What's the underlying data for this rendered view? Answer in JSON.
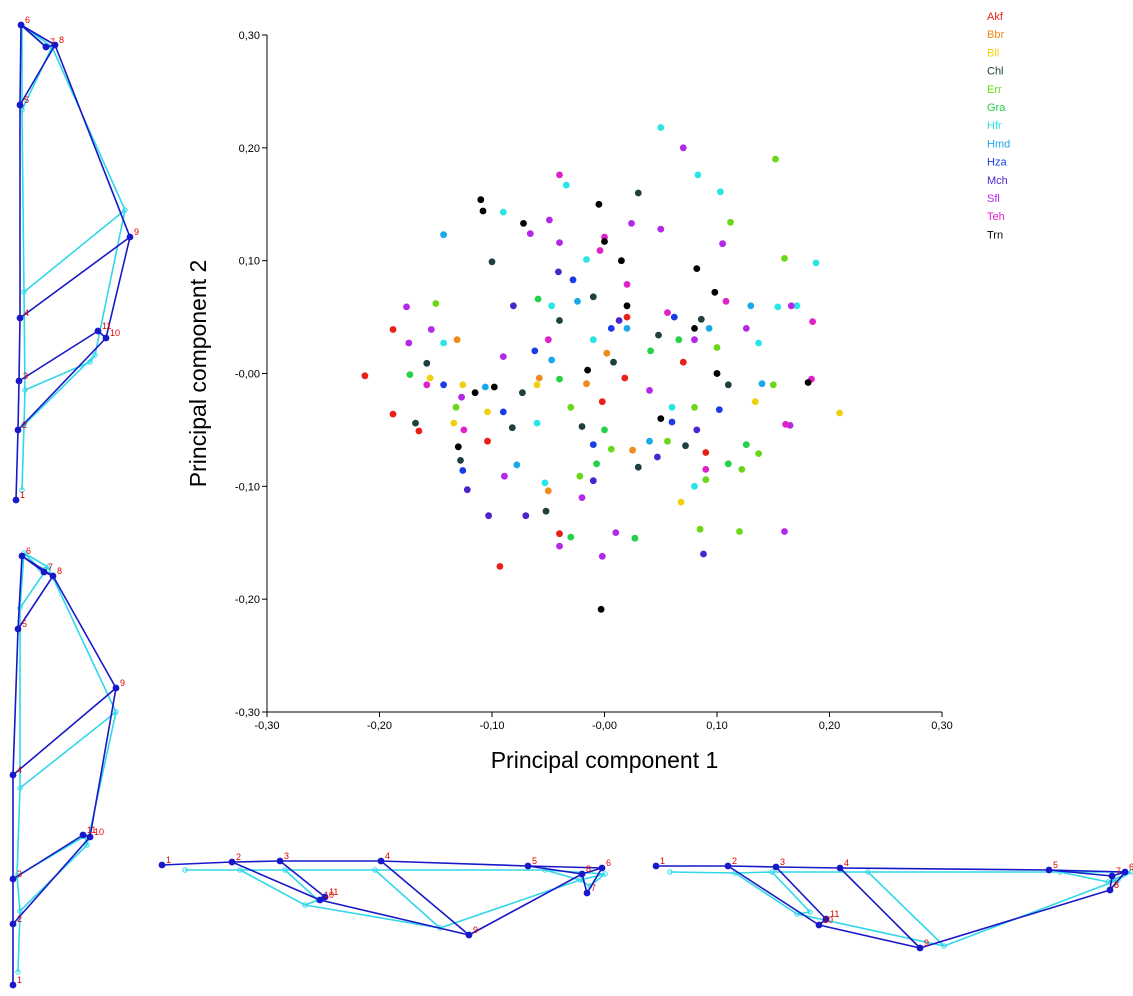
{
  "chart_data": {
    "type": "scatter",
    "xlabel": "Principal component 1",
    "ylabel": "Principal component 2",
    "xlim": [
      -0.3,
      0.3
    ],
    "ylim": [
      -0.3,
      0.3
    ],
    "x_ticks": [
      "-0,30",
      "-0,20",
      "-0,10",
      "-0,00",
      "0,10",
      "0,20",
      "0,30"
    ],
    "y_ticks": [
      "0,30",
      "0,20",
      "0,10",
      "-0,00",
      "-0,10",
      "-0,20",
      "-0,30"
    ],
    "legend_position": "top-right",
    "series": [
      {
        "name": "Akf",
        "color": "#e8201a",
        "points": [
          [
            -0.213,
            -0.002
          ],
          [
            -0.188,
            0.039
          ],
          [
            -0.188,
            -0.036
          ],
          [
            -0.165,
            -0.051
          ],
          [
            -0.104,
            -0.06
          ],
          [
            -0.093,
            -0.171
          ],
          [
            -0.04,
            -0.142
          ],
          [
            0.02,
            0.05
          ],
          [
            0.07,
            0.01
          ],
          [
            0.09,
            -0.07
          ],
          [
            -0.002,
            -0.025
          ],
          [
            0.018,
            -0.004
          ]
        ]
      },
      {
        "name": "Bbr",
        "color": "#f08a1c",
        "points": [
          [
            -0.131,
            0.03
          ],
          [
            -0.058,
            -0.004
          ],
          [
            -0.05,
            -0.104
          ],
          [
            0.025,
            -0.068
          ],
          [
            -0.016,
            -0.009
          ],
          [
            0.002,
            0.018
          ]
        ]
      },
      {
        "name": "Bll",
        "color": "#f0d010",
        "points": [
          [
            -0.155,
            -0.004
          ],
          [
            -0.134,
            -0.044
          ],
          [
            -0.126,
            -0.01
          ],
          [
            -0.104,
            -0.034
          ],
          [
            -0.06,
            -0.01
          ],
          [
            0.068,
            -0.114
          ],
          [
            0.134,
            -0.025
          ],
          [
            0.209,
            -0.035
          ]
        ]
      },
      {
        "name": "Chl",
        "color": "#1e4040",
        "points": [
          [
            -0.168,
            -0.044
          ],
          [
            -0.158,
            0.009
          ],
          [
            -0.128,
            -0.077
          ],
          [
            -0.1,
            0.099
          ],
          [
            -0.073,
            -0.017
          ],
          [
            -0.052,
            -0.122
          ],
          [
            -0.04,
            0.047
          ],
          [
            -0.02,
            -0.047
          ],
          [
            0.008,
            0.01
          ],
          [
            0.03,
            0.16
          ],
          [
            0.048,
            0.034
          ],
          [
            0.072,
            -0.064
          ],
          [
            0.086,
            0.048
          ],
          [
            0.11,
            -0.01
          ],
          [
            0.03,
            -0.083
          ],
          [
            -0.082,
            -0.048
          ],
          [
            -0.01,
            0.068
          ]
        ]
      },
      {
        "name": "Err",
        "color": "#6ad818",
        "points": [
          [
            -0.15,
            0.062
          ],
          [
            -0.132,
            -0.03
          ],
          [
            -0.022,
            -0.091
          ],
          [
            0.006,
            -0.067
          ],
          [
            0.056,
            -0.06
          ],
          [
            0.085,
            -0.138
          ],
          [
            0.112,
            0.134
          ],
          [
            0.122,
            -0.085
          ],
          [
            0.137,
            -0.071
          ],
          [
            0.15,
            -0.01
          ],
          [
            0.152,
            0.19
          ],
          [
            0.16,
            0.102
          ],
          [
            0.1,
            0.023
          ],
          [
            0.08,
            -0.03
          ],
          [
            -0.03,
            -0.03
          ],
          [
            0.12,
            -0.14
          ],
          [
            0.09,
            -0.094
          ]
        ]
      },
      {
        "name": "Gra",
        "color": "#24d14a",
        "points": [
          [
            -0.173,
            -0.001
          ],
          [
            -0.03,
            -0.145
          ],
          [
            -0.059,
            0.066
          ],
          [
            -0.007,
            -0.08
          ],
          [
            0.027,
            -0.146
          ],
          [
            0.041,
            0.02
          ],
          [
            0.066,
            0.03
          ],
          [
            0.11,
            -0.08
          ],
          [
            -0.04,
            -0.005
          ],
          [
            0.0,
            -0.05
          ],
          [
            0.126,
            -0.063
          ]
        ]
      },
      {
        "name": "Hfr",
        "color": "#28e6e6",
        "points": [
          [
            -0.143,
            0.027
          ],
          [
            -0.09,
            0.143
          ],
          [
            -0.034,
            0.167
          ],
          [
            -0.047,
            0.06
          ],
          [
            -0.053,
            -0.097
          ],
          [
            -0.016,
            0.101
          ],
          [
            0.05,
            0.218
          ],
          [
            0.083,
            0.176
          ],
          [
            0.103,
            0.161
          ],
          [
            0.137,
            0.027
          ],
          [
            0.171,
            0.06
          ],
          [
            0.188,
            0.098
          ],
          [
            0.154,
            0.059
          ],
          [
            0.06,
            -0.03
          ],
          [
            -0.01,
            0.03
          ],
          [
            -0.06,
            -0.044
          ],
          [
            0.08,
            -0.1
          ]
        ]
      },
      {
        "name": "Hmd",
        "color": "#1aa8e8",
        "points": [
          [
            -0.143,
            0.123
          ],
          [
            -0.106,
            -0.012
          ],
          [
            -0.078,
            -0.081
          ],
          [
            -0.047,
            0.012
          ],
          [
            -0.024,
            0.064
          ],
          [
            0.02,
            0.04
          ],
          [
            0.093,
            0.04
          ],
          [
            0.13,
            0.06
          ],
          [
            0.14,
            -0.009
          ],
          [
            0.04,
            -0.06
          ]
        ]
      },
      {
        "name": "Hza",
        "color": "#1a3ce8",
        "points": [
          [
            -0.143,
            -0.01
          ],
          [
            -0.126,
            -0.086
          ],
          [
            -0.09,
            -0.034
          ],
          [
            -0.062,
            0.02
          ],
          [
            -0.028,
            0.083
          ],
          [
            0.006,
            0.04
          ],
          [
            0.062,
            0.05
          ],
          [
            0.102,
            -0.032
          ],
          [
            -0.01,
            -0.063
          ],
          [
            0.06,
            -0.043
          ]
        ]
      },
      {
        "name": "Mch",
        "color": "#4a24cc",
        "points": [
          [
            -0.122,
            -0.103
          ],
          [
            -0.103,
            -0.126
          ],
          [
            -0.07,
            -0.126
          ],
          [
            -0.081,
            0.06
          ],
          [
            -0.041,
            0.09
          ],
          [
            0.013,
            0.047
          ],
          [
            0.047,
            -0.074
          ],
          [
            0.088,
            -0.16
          ],
          [
            0.082,
            -0.05
          ],
          [
            -0.01,
            -0.095
          ]
        ]
      },
      {
        "name": "Sfl",
        "color": "#b428e8",
        "points": [
          [
            -0.176,
            0.059
          ],
          [
            -0.174,
            0.027
          ],
          [
            -0.154,
            0.039
          ],
          [
            -0.127,
            -0.021
          ],
          [
            -0.089,
            -0.091
          ],
          [
            -0.066,
            0.124
          ],
          [
            -0.049,
            0.136
          ],
          [
            -0.04,
            0.116
          ],
          [
            -0.04,
            -0.153
          ],
          [
            -0.002,
            -0.162
          ],
          [
            0.01,
            -0.141
          ],
          [
            0.024,
            0.133
          ],
          [
            0.05,
            0.128
          ],
          [
            0.07,
            0.2
          ],
          [
            0.105,
            0.115
          ],
          [
            0.126,
            0.04
          ],
          [
            0.16,
            -0.14
          ],
          [
            0.166,
            0.06
          ],
          [
            0.165,
            -0.046
          ],
          [
            -0.09,
            0.015
          ],
          [
            0.04,
            -0.015
          ],
          [
            0.08,
            0.03
          ],
          [
            -0.02,
            -0.11
          ],
          [
            0.1,
            0.0
          ]
        ]
      },
      {
        "name": "Teh",
        "color": "#e020c8",
        "points": [
          [
            -0.158,
            -0.01
          ],
          [
            -0.125,
            -0.05
          ],
          [
            -0.04,
            0.176
          ],
          [
            -0.004,
            0.109
          ],
          [
            0.0,
            0.121
          ],
          [
            0.02,
            0.079
          ],
          [
            0.056,
            0.054
          ],
          [
            0.108,
            0.064
          ],
          [
            0.161,
            -0.045
          ],
          [
            0.184,
            -0.005
          ],
          [
            0.185,
            0.046
          ],
          [
            0.09,
            -0.085
          ],
          [
            -0.05,
            0.03
          ]
        ]
      },
      {
        "name": "Trn",
        "color": "#000000",
        "points": [
          [
            -0.11,
            0.154
          ],
          [
            -0.108,
            0.144
          ],
          [
            -0.072,
            0.133
          ],
          [
            -0.005,
            0.15
          ],
          [
            0.0,
            0.117
          ],
          [
            0.015,
            0.1
          ],
          [
            0.082,
            0.093
          ],
          [
            0.098,
            0.072
          ],
          [
            0.1,
            0.0
          ],
          [
            0.181,
            -0.008
          ],
          [
            -0.003,
            -0.209
          ],
          [
            -0.115,
            -0.017
          ],
          [
            -0.098,
            -0.012
          ],
          [
            -0.015,
            0.003
          ],
          [
            0.05,
            -0.04
          ],
          [
            0.08,
            0.04
          ],
          [
            -0.13,
            -0.065
          ],
          [
            0.02,
            0.06
          ]
        ]
      }
    ]
  },
  "landmark_panels": [
    {
      "labels": [
        "1",
        "2",
        "3",
        "4",
        "5",
        "6",
        "7",
        "8",
        "9",
        "10",
        "11"
      ]
    },
    {
      "labels": [
        "1",
        "2",
        "3",
        "4",
        "5",
        "6",
        "7",
        "8",
        "9",
        "10",
        "11"
      ]
    },
    {
      "labels": [
        "1",
        "2",
        "3",
        "4",
        "5",
        "6",
        "7",
        "8",
        "9",
        "10",
        "11"
      ]
    },
    {
      "labels": [
        "1",
        "2",
        "3",
        "4",
        "5",
        "6",
        "7",
        "8",
        "9",
        "10",
        "11"
      ]
    }
  ],
  "colors": {
    "mean_shape": "#1818c8",
    "deformed_shape": "#30d8e8",
    "landmark_label": "#e00000"
  }
}
